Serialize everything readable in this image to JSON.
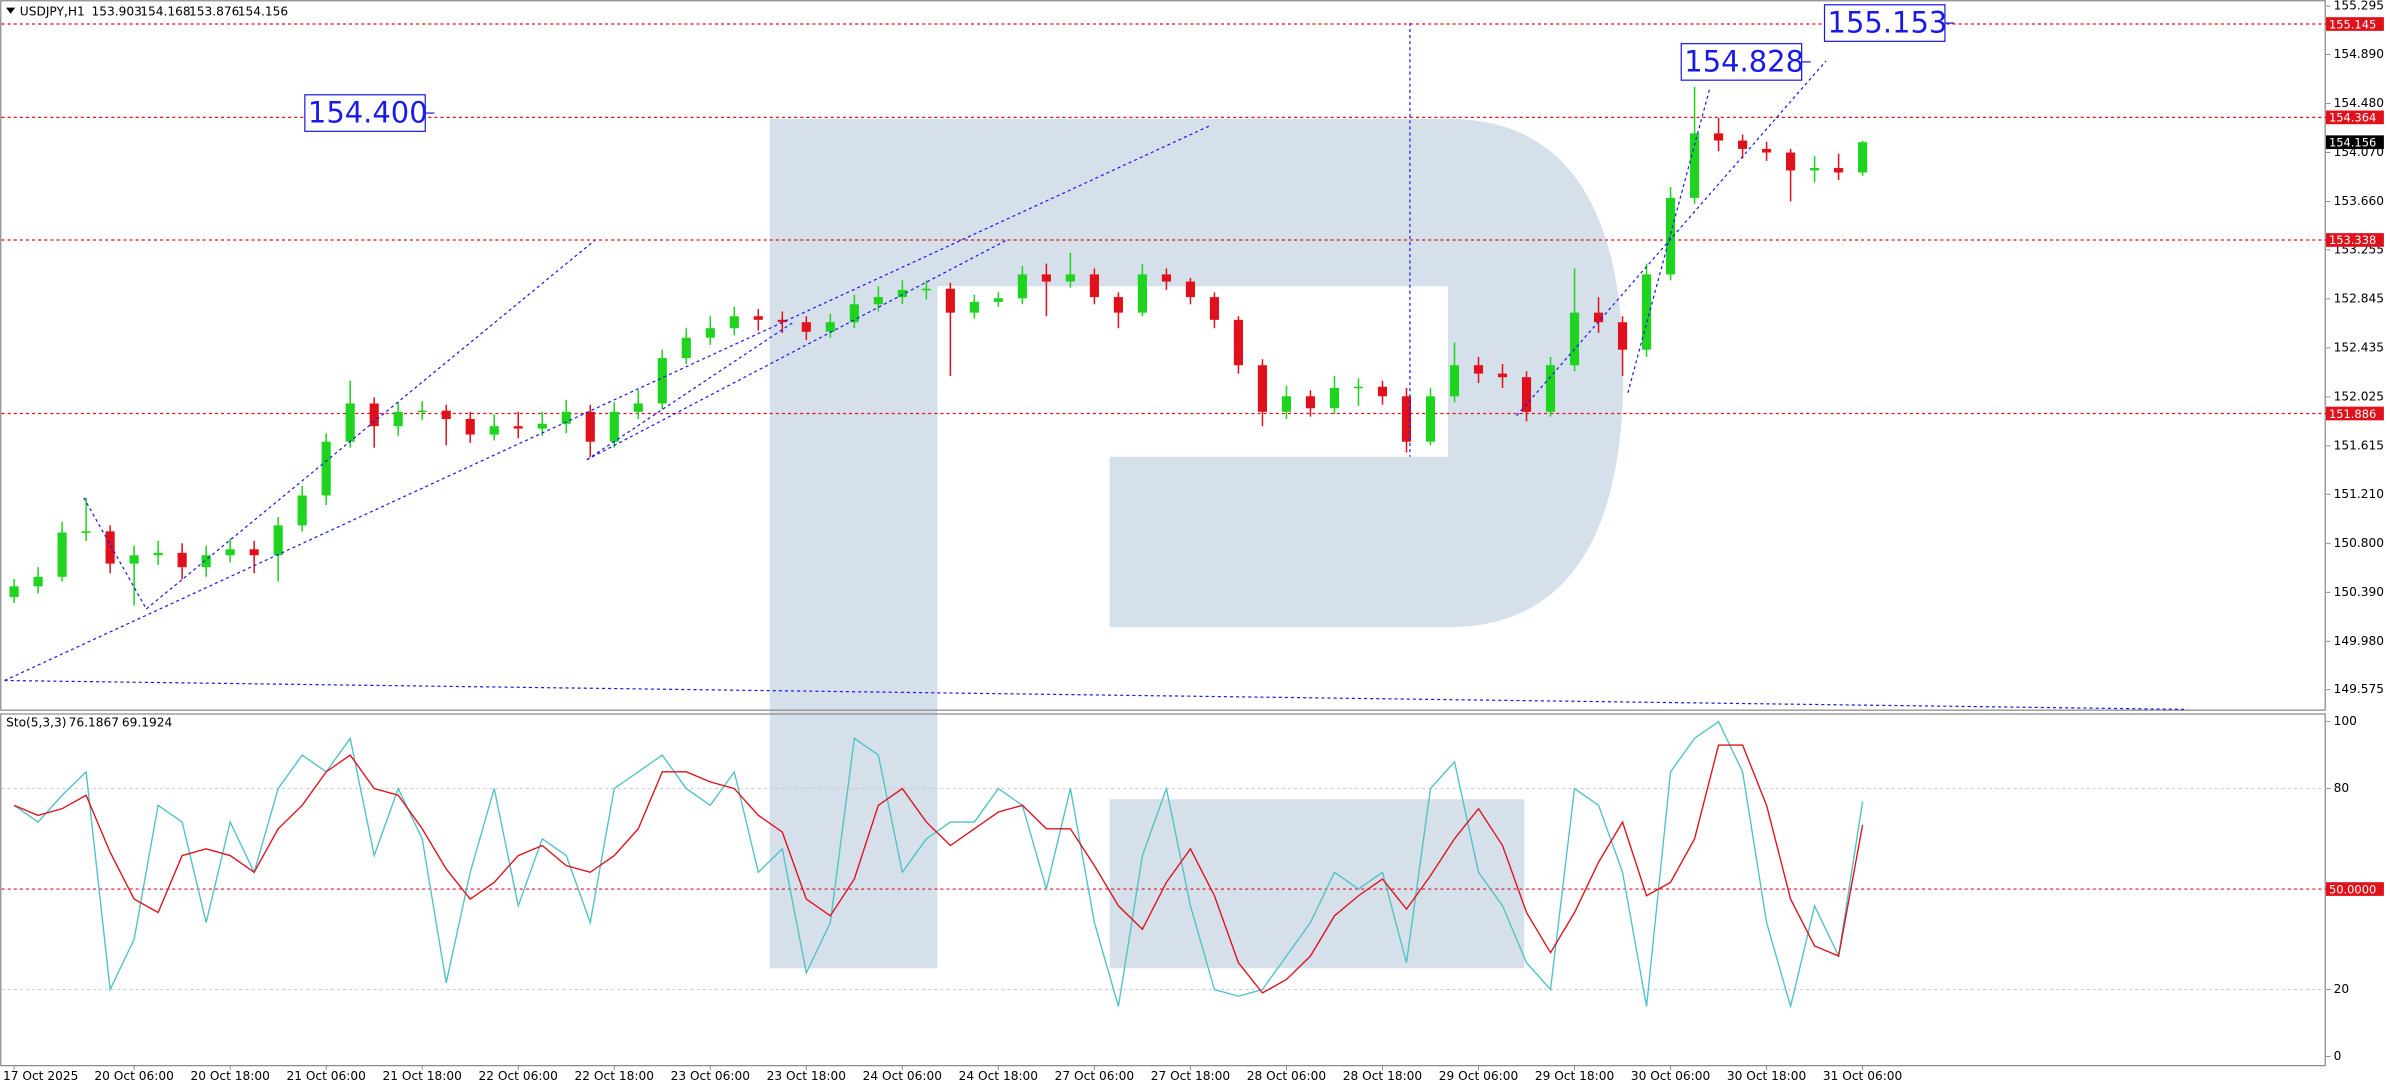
{
  "chart_data": [
    {
      "type": "candlestick",
      "title": "USDJPY,H1",
      "categories": [
        "17 Oct 2025",
        null,
        null,
        null,
        null,
        "20 Oct 06:00",
        null,
        null,
        null,
        "20 Oct 18:00",
        null,
        null,
        null,
        "21 Oct 06:00",
        null,
        null,
        null,
        "21 Oct 18:00",
        null,
        null,
        null,
        "22 Oct 06:00",
        null,
        null,
        null,
        "22 Oct 18:00",
        null,
        null,
        null,
        "23 Oct 06:00",
        null,
        null,
        null,
        "23 Oct 18:00",
        null,
        null,
        null,
        "24 Oct 06:00",
        null,
        null,
        null,
        "24 Oct 18:00",
        null,
        null,
        null,
        "27 Oct 06:00",
        null,
        null,
        null,
        "27 Oct 18:00",
        null,
        null,
        null,
        "28 Oct 06:00",
        null,
        null,
        null,
        "28 Oct 18:00",
        null,
        null,
        null,
        "29 Oct 06:00",
        null,
        null,
        null,
        "29 Oct 18:00",
        null,
        null,
        null,
        "30 Oct 06:00",
        null,
        null,
        null,
        "30 Oct 18:00",
        null,
        null,
        null,
        "31 Oct 06:00"
      ],
      "open": [
        150.35,
        150.44,
        150.52,
        150.89,
        150.9,
        150.63,
        150.7,
        150.72,
        150.6,
        150.7,
        150.75,
        150.7,
        150.95,
        151.2,
        151.65,
        151.97,
        151.78,
        151.9,
        151.91,
        151.84,
        151.71,
        151.78,
        151.76,
        151.8,
        151.9,
        151.65,
        151.9,
        151.97,
        152.35,
        152.52,
        152.6,
        152.7,
        152.67,
        152.65,
        152.57,
        152.65,
        152.8,
        152.86,
        152.92,
        152.93,
        152.73,
        152.82,
        152.85,
        153.05,
        152.99,
        153.05,
        152.86,
        152.73,
        153.05,
        152.99,
        152.86,
        152.67,
        152.29,
        151.9,
        152.03,
        151.93,
        152.1,
        152.11,
        152.03,
        151.65,
        152.03,
        152.29,
        152.22,
        152.19,
        151.9,
        152.29,
        152.73,
        152.65,
        152.42,
        153.05,
        153.69,
        154.23,
        154.17,
        154.1,
        154.07,
        153.92,
        153.94,
        153.903
      ],
      "high": [
        150.5,
        150.6,
        150.98,
        151.18,
        150.95,
        150.78,
        150.82,
        150.8,
        150.78,
        150.84,
        150.82,
        151.02,
        151.28,
        151.72,
        152.16,
        152.02,
        151.98,
        151.99,
        151.96,
        151.9,
        151.88,
        151.9,
        151.9,
        152.0,
        151.96,
        151.98,
        152.08,
        152.42,
        152.6,
        152.7,
        152.78,
        152.76,
        152.74,
        152.7,
        152.72,
        152.88,
        152.95,
        153.0,
        153.0,
        152.98,
        152.88,
        152.9,
        153.12,
        153.14,
        153.23,
        153.1,
        152.9,
        153.14,
        153.1,
        153.02,
        152.9,
        152.7,
        152.34,
        152.12,
        152.08,
        152.2,
        152.18,
        152.16,
        152.1,
        152.1,
        152.48,
        152.36,
        152.3,
        152.24,
        152.36,
        153.1,
        152.86,
        152.7,
        153.14,
        153.78,
        154.62,
        154.36,
        154.22,
        154.16,
        154.1,
        154.04,
        154.06,
        154.168
      ],
      "low": [
        150.3,
        150.38,
        150.48,
        150.82,
        150.55,
        150.28,
        150.62,
        150.5,
        150.52,
        150.64,
        150.55,
        150.48,
        150.9,
        151.12,
        151.6,
        151.6,
        151.7,
        151.83,
        151.62,
        151.64,
        151.66,
        151.68,
        151.7,
        151.72,
        151.52,
        151.6,
        151.84,
        151.92,
        152.3,
        152.46,
        152.54,
        152.58,
        152.56,
        152.5,
        152.52,
        152.6,
        152.74,
        152.8,
        152.84,
        152.2,
        152.68,
        152.78,
        152.8,
        152.7,
        152.94,
        152.8,
        152.6,
        152.7,
        152.92,
        152.8,
        152.6,
        152.22,
        151.78,
        151.84,
        151.86,
        151.88,
        151.95,
        151.96,
        151.56,
        151.62,
        151.98,
        152.14,
        152.1,
        151.82,
        151.86,
        152.24,
        152.56,
        152.2,
        152.36,
        153.0,
        153.64,
        154.08,
        154.02,
        154.0,
        153.66,
        153.82,
        153.84,
        153.876
      ],
      "close": [
        150.44,
        150.52,
        150.89,
        150.9,
        150.63,
        150.7,
        150.72,
        150.6,
        150.7,
        150.75,
        150.7,
        150.95,
        151.2,
        151.65,
        151.97,
        151.78,
        151.9,
        151.91,
        151.84,
        151.71,
        151.78,
        151.76,
        151.8,
        151.9,
        151.65,
        151.9,
        151.97,
        152.35,
        152.52,
        152.6,
        152.7,
        152.67,
        152.65,
        152.57,
        152.65,
        152.8,
        152.86,
        152.92,
        152.93,
        152.73,
        152.82,
        152.85,
        153.05,
        152.99,
        153.05,
        152.86,
        152.73,
        153.05,
        152.99,
        152.86,
        152.67,
        152.29,
        151.9,
        152.03,
        151.93,
        152.1,
        152.11,
        152.03,
        151.65,
        152.03,
        152.29,
        152.22,
        152.19,
        151.9,
        152.29,
        152.73,
        152.65,
        152.42,
        153.05,
        153.69,
        154.23,
        154.17,
        154.1,
        154.07,
        153.92,
        153.94,
        153.903,
        154.156
      ],
      "up_color": "#1ed41e",
      "down_color": "#e0111b",
      "ylim": [
        149.41,
        155.346
      ],
      "yticks": [
        155.295,
        {
          "value": 154.89,
          "label": "154.890"
        },
        {
          "value": 154.48,
          "label": "154.480"
        },
        {
          "value": 154.07,
          "label": "154.070"
        },
        {
          "value": 153.66,
          "label": "153.660"
        },
        153.255,
        152.845,
        152.435,
        152.025,
        151.615,
        {
          "value": 151.21,
          "label": "151.210"
        },
        {
          "value": 150.8,
          "label": "150.800"
        },
        {
          "value": 150.39,
          "label": "150.390"
        },
        {
          "value": 149.98,
          "label": "149.980"
        },
        149.575
      ],
      "levels": [
        155.145,
        154.364,
        153.338,
        151.886
      ],
      "level_color": "#e0111b",
      "annotations": [
        {
          "value": 154.4,
          "label": "154.400"
        },
        {
          "value": 154.828,
          "label": "154.828"
        },
        {
          "value": 155.153,
          "label": "155.153"
        }
      ]
    },
    {
      "type": "line",
      "title": "Sto(5,3,3)",
      "series": [
        {
          "color": "#4fc3c7",
          "values": [
            75,
            70,
            78,
            85,
            20,
            35,
            75,
            70,
            40,
            70,
            55,
            80,
            90,
            85,
            95,
            60,
            80,
            65,
            22,
            55,
            80,
            45,
            65,
            60,
            40,
            80,
            85,
            90,
            80,
            75,
            85,
            55,
            62,
            25,
            40,
            95,
            90,
            55,
            65,
            70,
            70,
            80,
            75,
            50,
            80,
            40,
            15,
            60,
            80,
            45,
            20,
            18,
            20,
            30,
            40,
            55,
            50,
            55,
            28,
            80,
            88,
            55,
            45,
            28,
            20,
            80,
            75,
            55,
            15,
            85,
            95,
            100,
            85,
            40,
            15,
            45,
            30,
            76.1867
          ]
        },
        {
          "color": "#e0111b",
          "values": [
            75,
            72,
            74,
            78,
            61,
            47,
            43,
            60,
            62,
            60,
            55,
            68,
            75,
            85,
            90,
            80,
            78,
            68,
            56,
            47,
            52,
            60,
            63,
            57,
            55,
            60,
            68,
            85,
            85,
            82,
            80,
            72,
            67,
            47,
            42,
            53,
            75,
            80,
            70,
            63,
            68,
            73,
            75,
            68,
            68,
            57,
            45,
            38,
            52,
            62,
            48,
            28,
            19,
            23,
            30,
            42,
            48,
            53,
            44,
            54,
            65,
            74,
            63,
            43,
            31,
            43,
            58,
            70,
            48,
            52,
            65,
            93,
            93,
            75,
            47,
            33,
            30,
            69.1924
          ]
        }
      ],
      "ylim": [
        0,
        100
      ],
      "yticks": [
        0,
        20,
        80,
        100
      ],
      "levels": [
        {
          "value": 50,
          "label": "50.0000"
        }
      ],
      "level_color": "#e0111b"
    }
  ]
}
